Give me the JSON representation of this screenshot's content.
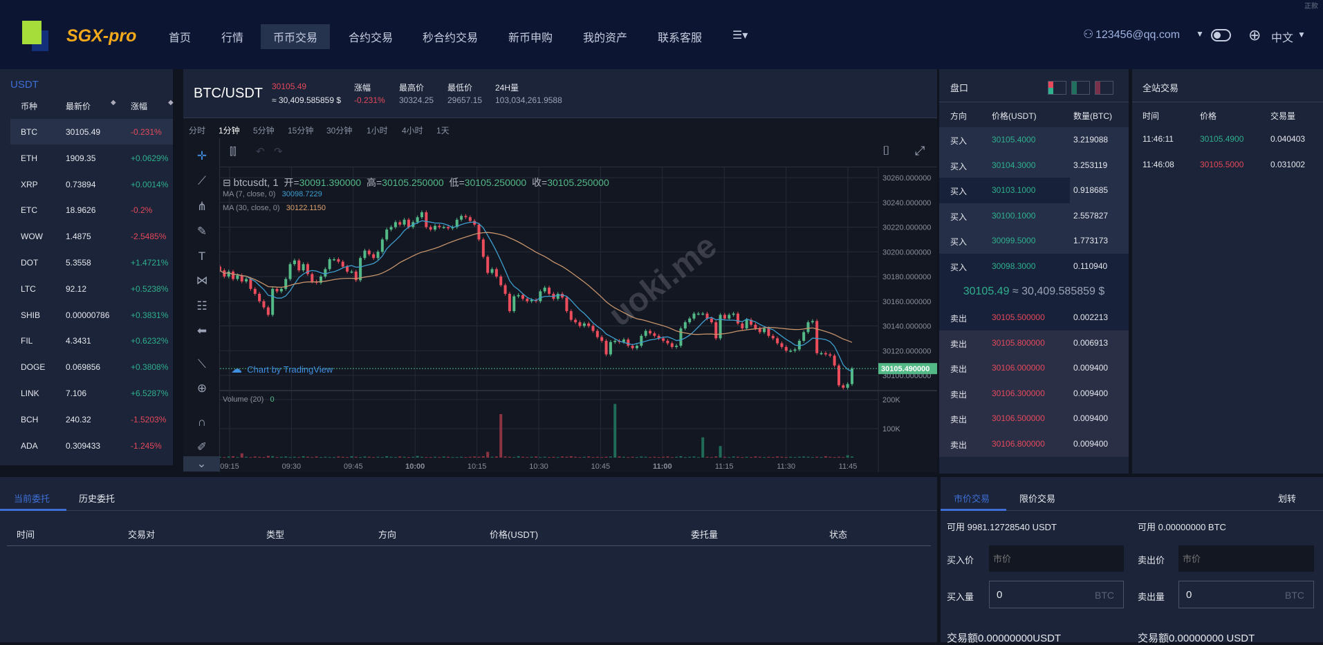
{
  "header": {
    "logo": "SGX-pro",
    "nav": [
      "首页",
      "行情",
      "币币交易",
      "合约交易",
      "秒合约交易",
      "新币申购",
      "我的资产",
      "联系客服"
    ],
    "active_nav": "币币交易",
    "user": "123456@qq.com",
    "language": "中文",
    "corner_text": "正款"
  },
  "market_list": {
    "quote": "USDT",
    "headers": [
      "币种",
      "最新价",
      "涨幅"
    ],
    "rows": [
      {
        "coin": "BTC",
        "price": "30105.49",
        "change": "-0.231%",
        "dir": "down"
      },
      {
        "coin": "ETH",
        "price": "1909.35",
        "change": "+0.0629%",
        "dir": "up"
      },
      {
        "coin": "XRP",
        "price": "0.73894",
        "change": "+0.0014%",
        "dir": "up"
      },
      {
        "coin": "ETC",
        "price": "18.9626",
        "change": "-0.2%",
        "dir": "down"
      },
      {
        "coin": "WOW",
        "price": "1.4875",
        "change": "-2.5485%",
        "dir": "down"
      },
      {
        "coin": "DOT",
        "price": "5.3558",
        "change": "+1.4721%",
        "dir": "up"
      },
      {
        "coin": "LTC",
        "price": "92.12",
        "change": "+0.5238%",
        "dir": "up"
      },
      {
        "coin": "SHIB",
        "price": "0.00000786",
        "change": "+0.3831%",
        "dir": "up"
      },
      {
        "coin": "FIL",
        "price": "4.3431",
        "change": "+0.6232%",
        "dir": "up"
      },
      {
        "coin": "DOGE",
        "price": "0.069856",
        "change": "+0.3808%",
        "dir": "up"
      },
      {
        "coin": "LINK",
        "price": "7.106",
        "change": "+6.5287%",
        "dir": "up"
      },
      {
        "coin": "BCH",
        "price": "240.32",
        "change": "-1.5203%",
        "dir": "down"
      },
      {
        "coin": "ADA",
        "price": "0.309433",
        "change": "-1.245%",
        "dir": "down"
      }
    ]
  },
  "ticker": {
    "pair": "BTC/USDT",
    "price": "30105.49",
    "usd": "≈ 30,409.585859 $",
    "change_label": "涨幅",
    "change": "-0.231%",
    "high_label": "最高价",
    "high": "30324.25",
    "low_label": "最低价",
    "low": "29657.15",
    "vol_label": "24H量",
    "vol": "103,034,261.9588"
  },
  "timeframes": [
    "分时",
    "1分钟",
    "5分钟",
    "15分钟",
    "30分钟",
    "1小时",
    "4小时",
    "1天"
  ],
  "active_timeframe": "1分钟",
  "chart_data": {
    "type": "candlestick",
    "symbol": "btcusdt, 1",
    "ohlc_legend": {
      "open_label": "开=",
      "open": "30091.390000",
      "high_label": "高=",
      "high": "30105.250000",
      "low_label": "低=",
      "low": "30105.250000",
      "close_label": "收=",
      "close": "30105.250000"
    },
    "ma7": {
      "label": "MA (7, close, 0)",
      "value": "30098.7229",
      "color": "#3d9fcf"
    },
    "ma30": {
      "label": "MA (30, close, 0)",
      "value": "30122.1150",
      "color": "#c6936b"
    },
    "volume_label": "Volume (20)",
    "volume_value": "0",
    "last_price": "30105.490000",
    "y_ticks": [
      "30260.000000",
      "30240.000000",
      "30220.000000",
      "30200.000000",
      "30180.000000",
      "30160.000000",
      "30140.000000",
      "30120.000000",
      "30100.000000"
    ],
    "ylim": [
      30100,
      30260
    ],
    "volume_ticks": [
      "200K",
      "100K"
    ],
    "x_ticks": [
      "09:15",
      "09:30",
      "09:45",
      "10:00",
      "10:15",
      "10:30",
      "10:45",
      "11:00",
      "11:15",
      "11:30",
      "11:45"
    ],
    "closes": [
      30185,
      30180,
      30184,
      30178,
      30181,
      30176,
      30178,
      30170,
      30166,
      30160,
      30155,
      30149,
      30170,
      30168,
      30170,
      30178,
      30190,
      30193,
      30185,
      30190,
      30182,
      30176,
      30175,
      30180,
      30186,
      30194,
      30194,
      30192,
      30188,
      30184,
      30184,
      30177,
      30195,
      30201,
      30198,
      30195,
      30200,
      30210,
      30218,
      30220,
      30224,
      30222,
      30226,
      30220,
      30224,
      30228,
      30232,
      30220,
      30218,
      30221,
      30220,
      30220,
      30219,
      30220,
      30226,
      30229,
      30228,
      30225,
      30222,
      30210,
      30196,
      30183,
      30186,
      30180,
      30173,
      30166,
      30152,
      30164,
      30165,
      30162,
      30160,
      30161,
      30160,
      30168,
      30171,
      30166,
      30162,
      30166,
      30163,
      30152,
      30145,
      30143,
      30140,
      30142,
      30140,
      30136,
      30131,
      30128,
      30117,
      30127,
      30128,
      30127,
      30129,
      30124,
      30122,
      30124,
      30132,
      30136,
      30134,
      30132,
      30130,
      30128,
      30126,
      30123,
      30124,
      30138,
      30143,
      30146,
      30150,
      30150,
      30150,
      30146,
      30143,
      30130,
      30149,
      30146,
      30149,
      30150,
      30142,
      30138,
      30145,
      30141,
      30138,
      30135,
      30138,
      30132,
      30130,
      30126,
      30123,
      30120,
      30120,
      30121,
      30128,
      30135,
      30143,
      30144,
      30118,
      30118,
      30117,
      30116,
      30108,
      30092,
      30090,
      30093,
      30105.49
    ],
    "volumes_k": [
      3,
      2,
      4,
      5,
      2,
      15,
      3,
      2,
      4,
      3,
      2,
      6,
      5,
      2,
      3,
      4,
      2,
      3,
      2,
      5,
      3,
      2,
      4,
      2,
      3,
      2,
      2,
      4,
      3,
      2,
      5,
      3,
      2,
      4,
      3,
      2,
      3,
      2,
      5,
      3,
      2,
      4,
      3,
      2,
      3,
      6,
      3,
      2,
      2,
      3,
      2,
      4,
      3,
      2,
      2,
      3,
      2,
      3,
      4,
      3,
      5,
      20,
      3,
      4,
      150,
      4,
      3,
      2,
      5,
      3,
      2,
      3,
      4,
      2,
      3,
      2,
      3,
      2,
      4,
      3,
      5,
      3,
      2,
      3,
      4,
      2,
      3,
      2,
      3,
      4,
      185,
      4,
      3,
      2,
      3,
      2,
      4,
      3,
      2,
      3,
      2,
      3,
      4,
      2,
      3,
      5,
      2,
      3,
      4,
      2,
      70,
      3,
      2,
      4,
      40,
      3,
      2,
      4,
      3,
      2,
      3,
      2,
      4,
      3,
      2,
      3,
      2,
      4,
      3,
      2,
      3,
      2,
      3,
      4,
      3,
      2,
      3,
      2,
      5,
      3,
      2,
      3,
      2,
      8,
      4
    ],
    "up_color": "#53b987",
    "down_color": "#eb4d5c",
    "watermark": "uoki.me",
    "branding": "Chart by TradingView"
  },
  "orderbook": {
    "title": "盘口",
    "headers": [
      "方向",
      "价格(USDT)",
      "数量(BTC)"
    ],
    "buys": [
      {
        "side": "买入",
        "price": "30105.4000",
        "qty": "3.219088",
        "depth": 1.0
      },
      {
        "side": "买入",
        "price": "30104.3000",
        "qty": "3.253119",
        "depth": 1.0
      },
      {
        "side": "买入",
        "price": "30103.1000",
        "qty": "0.918685",
        "depth": 0.31
      },
      {
        "side": "买入",
        "price": "30100.1000",
        "qty": "2.557827",
        "depth": 1.0
      },
      {
        "side": "买入",
        "price": "30099.5000",
        "qty": "1.773173",
        "depth": 1.0
      },
      {
        "side": "买入",
        "price": "30098.3000",
        "qty": "0.110940",
        "depth": 0
      }
    ],
    "mid_price": "30105.49",
    "mid_usd": "≈ 30,409.585859 $",
    "sells": [
      {
        "side": "卖出",
        "price": "30105.500000",
        "qty": "0.002213",
        "depth": 0
      },
      {
        "side": "卖出",
        "price": "30105.800000",
        "qty": "0.006913",
        "depth": 1.0
      },
      {
        "side": "卖出",
        "price": "30106.000000",
        "qty": "0.009400",
        "depth": 1.0
      },
      {
        "side": "卖出",
        "price": "30106.300000",
        "qty": "0.009400",
        "depth": 1.0
      },
      {
        "side": "卖出",
        "price": "30106.500000",
        "qty": "0.009400",
        "depth": 1.0
      },
      {
        "side": "卖出",
        "price": "30106.800000",
        "qty": "0.009400",
        "depth": 1.0
      }
    ]
  },
  "trades": {
    "title": "全站交易",
    "headers": [
      "时间",
      "价格",
      "交易量"
    ],
    "rows": [
      {
        "time": "11:46:11",
        "price": "30105.4900",
        "qty": "0.040403",
        "dir": "up"
      },
      {
        "time": "11:46:08",
        "price": "30105.5000",
        "qty": "0.031002",
        "dir": "down"
      }
    ]
  },
  "orders": {
    "tabs": [
      "当前委托",
      "历史委托"
    ],
    "headers": [
      "时间",
      "交易对",
      "类型",
      "方向",
      "价格(USDT)",
      "委托量",
      "状态"
    ]
  },
  "trade_form": {
    "tabs": [
      "市价交易",
      "限价交易"
    ],
    "transfer": "划转",
    "buy_available": "可用 9981.12728540 USDT",
    "sell_available": "可用 0.00000000 BTC",
    "buy_price_label": "买入价",
    "sell_price_label": "卖出价",
    "price_placeholder": "市价",
    "buy_qty_label": "买入量",
    "sell_qty_label": "卖出量",
    "qty_value": "0",
    "qty_unit": "BTC",
    "buy_total": "交易额0.00000000USDT",
    "sell_total": "交易额0.00000000 USDT"
  }
}
